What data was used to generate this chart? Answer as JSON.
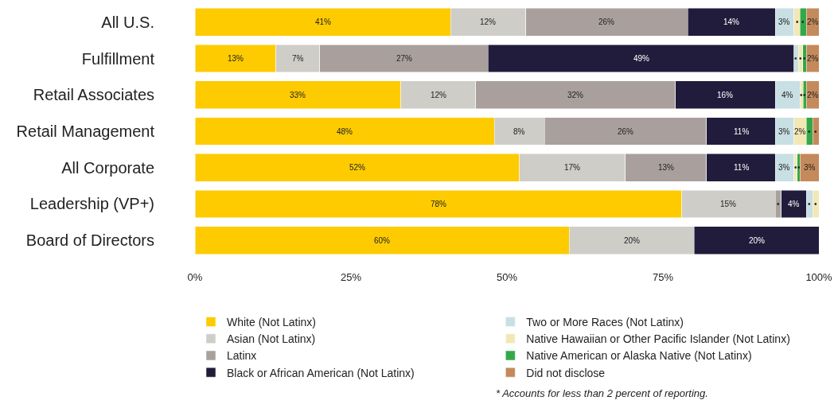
{
  "chart_data": {
    "type": "bar",
    "orientation": "horizontal",
    "stacked": true,
    "categories": [
      "All U.S.",
      "Fulfillment",
      "Retail Associates",
      "Retail Management",
      "All Corporate",
      "Leadership (VP+)",
      "Board of Directors"
    ],
    "xlim": [
      0,
      100
    ],
    "xticks": [
      {
        "value": 0,
        "label": "0%"
      },
      {
        "value": 25,
        "label": "25%"
      },
      {
        "value": 50,
        "label": "50%"
      },
      {
        "value": 75,
        "label": "75%"
      },
      {
        "value": 100,
        "label": "100%"
      }
    ],
    "legend": "bottom",
    "annotations": [
      "* Accounts for less than 2 percent of reporting."
    ],
    "series": [
      {
        "name": "White (Not Latinx)",
        "color": "#fdcb00",
        "values": [
          41,
          13,
          33,
          48,
          52,
          78,
          60
        ],
        "value_labels": [
          "41%",
          "13%",
          "33%",
          "48%",
          "52%",
          "78%",
          "60%"
        ]
      },
      {
        "name": "Asian (Not Latinx)",
        "color": "#cfcdc8",
        "values": [
          12,
          7,
          12,
          8,
          17,
          15,
          20
        ],
        "value_labels": [
          "12%",
          "7%",
          "12%",
          "8%",
          "17%",
          "15%",
          "20%"
        ]
      },
      {
        "name": "Latinx",
        "color": "#a9a09e",
        "values": [
          26,
          27,
          32,
          26,
          13,
          1,
          null
        ],
        "value_labels": [
          "26%",
          "27%",
          "32%",
          "26%",
          "13%",
          "•",
          null
        ]
      },
      {
        "name": "Black or African American (Not Latinx)",
        "color": "#211c3b",
        "values": [
          14,
          49,
          16,
          11,
          11,
          4,
          20
        ],
        "value_labels": [
          "14%",
          "49%",
          "16%",
          "11%",
          "11%",
          "4%",
          "20%"
        ]
      },
      {
        "name": "Two or More Races (Not Latinx)",
        "color": "#c8dfe3",
        "values": [
          3,
          0.7,
          4,
          3,
          3,
          1,
          null
        ],
        "value_labels": [
          "3%",
          "•",
          "4%",
          "3%",
          "3%",
          "•",
          null
        ]
      },
      {
        "name": "Native Hawaiian or Other Pacific Islander (Not Latinx)",
        "color": "#f2e8b6",
        "values": [
          1,
          0.7,
          0.5,
          2,
          0.5,
          1,
          null
        ],
        "value_labels": [
          "•",
          "•",
          "•",
          "2%",
          "•",
          "•",
          null
        ]
      },
      {
        "name": "Native American or Alaska Native (Not Latinx)",
        "color": "#34a848",
        "values": [
          1,
          0.6,
          0.5,
          1,
          0.5,
          null,
          null
        ],
        "value_labels": [
          "•",
          "•",
          "•",
          "•",
          "•",
          null,
          null
        ]
      },
      {
        "name": "Did not disclose",
        "color": "#c48a5b",
        "values": [
          2,
          2,
          2,
          1,
          3,
          null,
          null
        ],
        "value_labels": [
          "2%",
          "2%",
          "2%",
          "•",
          "3%",
          null,
          null
        ]
      }
    ]
  }
}
